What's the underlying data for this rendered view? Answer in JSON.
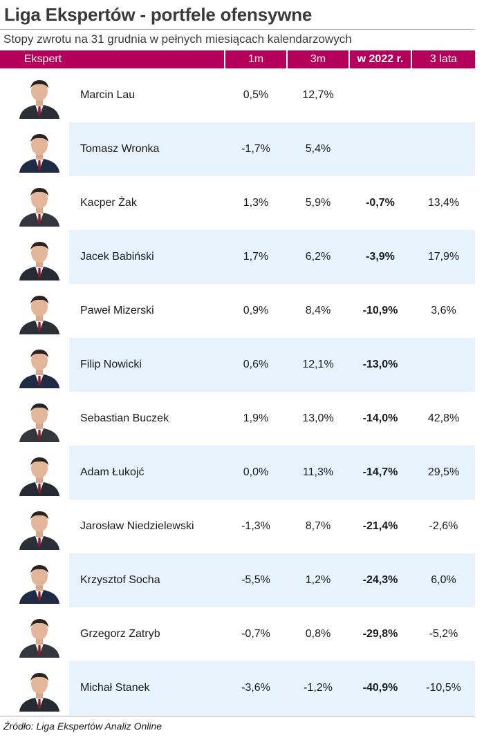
{
  "title": "Liga Ekspertów - portfele ofensywne",
  "subtitle": "Stopy zwrotu na 31 grudnia w pełnych miesiącach kalendarzowych",
  "columns": {
    "expert": "Ekspert",
    "m1": "1m",
    "m3": "3m",
    "ytd": "w 2022 r.",
    "y3": "3 lata"
  },
  "colors": {
    "header": "#b5005b",
    "row_shade": "#e6f2fc"
  },
  "rows": [
    {
      "name": "Marcin Lau",
      "m1": "0,5%",
      "m3": "12,7%",
      "ytd": "",
      "y3": "",
      "avatar": "person-photo"
    },
    {
      "name": "Tomasz Wronka",
      "m1": "-1,7%",
      "m3": "5,4%",
      "ytd": "",
      "y3": "",
      "avatar": "person-photo"
    },
    {
      "name": "Kacper Żak",
      "m1": "1,3%",
      "m3": "5,9%",
      "ytd": "-0,7%",
      "y3": "13,4%",
      "avatar": "person-photo"
    },
    {
      "name": "Jacek Babiński",
      "m1": "1,7%",
      "m3": "6,2%",
      "ytd": "-3,9%",
      "y3": "17,9%",
      "avatar": "person-photo"
    },
    {
      "name": "Paweł Mizerski",
      "m1": "0,9%",
      "m3": "8,4%",
      "ytd": "-10,9%",
      "y3": "3,6%",
      "avatar": "person-photo"
    },
    {
      "name": "Filip Nowicki",
      "m1": "0,6%",
      "m3": "12,1%",
      "ytd": "-13,0%",
      "y3": "",
      "avatar": "person-photo"
    },
    {
      "name": "Sebastian Buczek",
      "m1": "1,9%",
      "m3": "13,0%",
      "ytd": "-14,0%",
      "y3": "42,8%",
      "avatar": "person-photo"
    },
    {
      "name": "Adam Łukojć",
      "m1": "0,0%",
      "m3": "11,3%",
      "ytd": "-14,7%",
      "y3": "29,5%",
      "avatar": "person-photo"
    },
    {
      "name": "Jarosław Niedzielewski",
      "m1": "-1,3%",
      "m3": "8,7%",
      "ytd": "-21,4%",
      "y3": "-2,6%",
      "avatar": "person-photo"
    },
    {
      "name": "Krzysztof Socha",
      "m1": "-5,5%",
      "m3": "1,2%",
      "ytd": "-24,3%",
      "y3": "6,0%",
      "avatar": "person-photo"
    },
    {
      "name": "Grzegorz Zatryb",
      "m1": "-0,7%",
      "m3": "0,8%",
      "ytd": "-29,8%",
      "y3": "-5,2%",
      "avatar": "person-photo"
    },
    {
      "name": "Michał Stanek",
      "m1": "-3,6%",
      "m3": "-1,2%",
      "ytd": "-40,9%",
      "y3": "-10,5%",
      "avatar": "person-photo"
    }
  ],
  "source": "Źródło: Liga Ekspertów Analiz Online"
}
